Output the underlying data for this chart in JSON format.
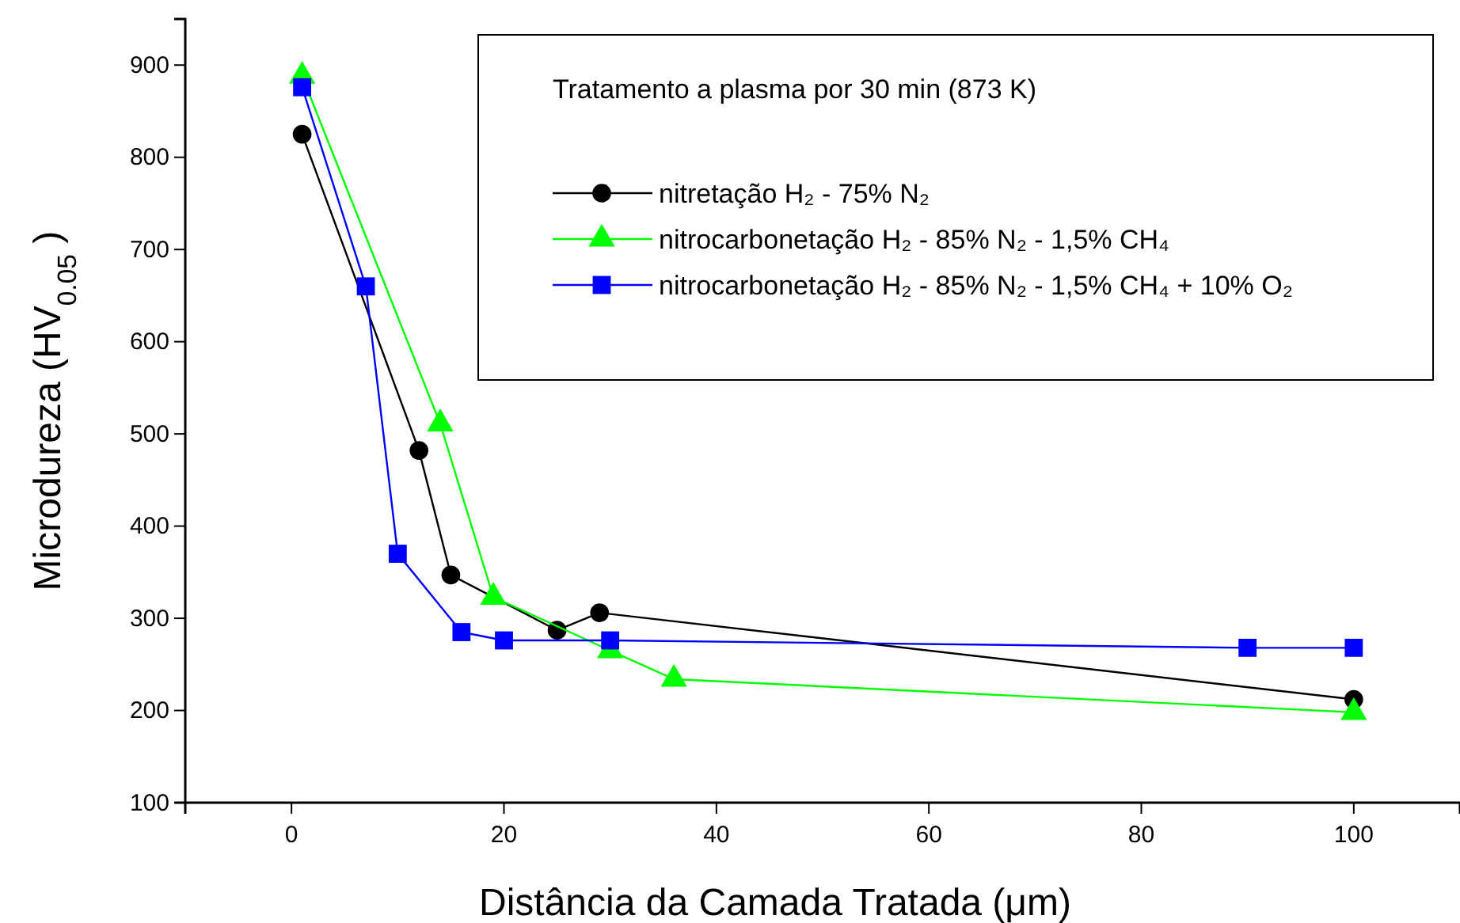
{
  "chart_data": {
    "type": "line",
    "xlabel": "Distância da Camada Tratada (μm)",
    "ylabel": "Microdureza (HV$_{0.05}$ )",
    "legend_title": "Tratamento a plasma por 30 min (873 K)",
    "legend": "top right",
    "xlim": [
      -10,
      110
    ],
    "ylim": [
      100,
      950
    ],
    "xticks": [
      0,
      20,
      40,
      60,
      80,
      100
    ],
    "yticks": [
      100,
      200,
      300,
      400,
      500,
      600,
      700,
      800,
      900
    ],
    "grid": false,
    "line_style": "solid",
    "series": [
      {
        "name": "nitretação H₂ - 75% N₂",
        "color": "#000000",
        "marker": "circle",
        "x": [
          1,
          12,
          15,
          25,
          29,
          100
        ],
        "values": [
          825,
          482,
          347,
          287,
          306,
          212
        ]
      },
      {
        "name": "nitrocarbonetação H₂ - 85% N₂ - 1,5% CH₄",
        "color": "#00ff00",
        "marker": "triangle",
        "x": [
          1,
          14,
          19,
          30,
          36,
          100
        ],
        "values": [
          888,
          511,
          323,
          265,
          234,
          198
        ]
      },
      {
        "name": "nitrocarbonetação H₂ - 85% N₂ - 1,5% CH₄ + 10% O₂",
        "color": "#0000ff",
        "marker": "square",
        "x": [
          1,
          7,
          10,
          16,
          20,
          30,
          90,
          100
        ],
        "values": [
          876,
          660,
          370,
          285,
          276,
          276,
          268,
          268
        ]
      }
    ]
  }
}
